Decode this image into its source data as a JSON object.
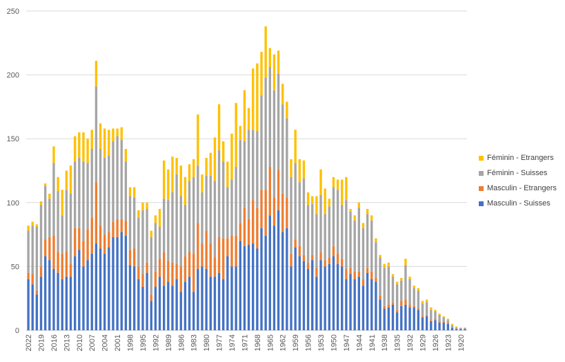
{
  "chart_data": {
    "type": "bar",
    "stacked": true,
    "title": "",
    "xlabel": "",
    "ylabel": "",
    "ylim": [
      0,
      250
    ],
    "yticks": [
      0,
      50,
      100,
      150,
      200,
      250
    ],
    "grid": true,
    "legend_position": "right",
    "x": [
      2022,
      2021,
      2020,
      2019,
      2018,
      2017,
      2016,
      2015,
      2014,
      2013,
      2012,
      2011,
      2010,
      2009,
      2008,
      2007,
      2006,
      2005,
      2004,
      2003,
      2002,
      2001,
      2000,
      1999,
      1998,
      1997,
      1996,
      1995,
      1994,
      1993,
      1992,
      1991,
      1990,
      1989,
      1988,
      1987,
      1986,
      1985,
      1984,
      1983,
      1982,
      1981,
      1980,
      1979,
      1978,
      1977,
      1976,
      1975,
      1974,
      1973,
      1972,
      1971,
      1970,
      1969,
      1968,
      1967,
      1966,
      1965,
      1964,
      1963,
      1962,
      1961,
      1960,
      1959,
      1958,
      1957,
      1956,
      1955,
      1954,
      1953,
      1952,
      1951,
      1950,
      1949,
      1948,
      1947,
      1946,
      1945,
      1944,
      1943,
      1942,
      1941,
      1940,
      1939,
      1938,
      1937,
      1936,
      1935,
      1934,
      1933,
      1932,
      1931,
      1930,
      1929,
      1928,
      1927,
      1926,
      1925,
      1924,
      1923,
      1922,
      1921,
      1920,
      1919
    ],
    "x_tick_labels": [
      "2022",
      "2019",
      "2016",
      "2013",
      "2010",
      "2007",
      "2004",
      "2001",
      "1998",
      "1995",
      "1992",
      "1989",
      "1986",
      "1983",
      "1980",
      "1977",
      "1974",
      "1971",
      "1968",
      "1965",
      "1962",
      "1959",
      "1956",
      "1953",
      "1950",
      "1947",
      "1944",
      "1941",
      "1938",
      "1935",
      "1932",
      "1929",
      "1926",
      "1923",
      "1920"
    ],
    "series": [
      {
        "name": "Masculin - Suisses",
        "color": "#4472C4",
        "values": [
          40,
          36,
          28,
          42,
          58,
          55,
          48,
          45,
          40,
          42,
          42,
          58,
          63,
          50,
          55,
          60,
          68,
          64,
          60,
          65,
          73,
          73,
          77,
          74,
          51,
          50,
          40,
          34,
          45,
          23,
          34,
          42,
          35,
          38,
          35,
          40,
          30,
          38,
          42,
          30,
          48,
          50,
          48,
          42,
          42,
          45,
          40,
          58,
          50,
          50,
          70,
          66,
          67,
          68,
          64,
          80,
          74,
          90,
          82,
          94,
          77,
          80,
          50,
          65,
          58,
          54,
          48,
          55,
          42,
          55,
          50,
          52,
          58,
          52,
          50,
          40,
          44,
          40,
          42,
          35,
          45,
          40,
          38,
          24,
          17,
          18,
          20,
          14,
          19,
          20,
          18,
          18,
          16,
          10,
          11,
          7,
          8,
          6,
          6,
          5,
          2,
          1,
          1,
          1
        ]
      },
      {
        "name": "Masculin - Etrangers",
        "color": "#ED7D31",
        "values": [
          5,
          8,
          3,
          8,
          13,
          18,
          26,
          16,
          20,
          20,
          10,
          22,
          17,
          20,
          24,
          28,
          48,
          18,
          15,
          12,
          12,
          14,
          10,
          12,
          12,
          14,
          10,
          10,
          8,
          5,
          12,
          14,
          26,
          16,
          18,
          12,
          20,
          20,
          20,
          30,
          36,
          18,
          30,
          26,
          15,
          28,
          32,
          14,
          24,
          24,
          14,
          30,
          20,
          34,
          32,
          30,
          36,
          38,
          22,
          32,
          30,
          24,
          10,
          6,
          8,
          5,
          5,
          4,
          7,
          6,
          5,
          5,
          8,
          8,
          6,
          8,
          5,
          6,
          4,
          5,
          4,
          6,
          3,
          3,
          2,
          2,
          2,
          2,
          4,
          4,
          2,
          1,
          1,
          1,
          1,
          1,
          1,
          1,
          1,
          1,
          0,
          0,
          0,
          0
        ]
      },
      {
        "name": "Féminin - Suisses",
        "color": "#A5A5A5",
        "values": [
          33,
          38,
          50,
          48,
          42,
          30,
          57,
          48,
          30,
          48,
          55,
          52,
          55,
          62,
          52,
          54,
          75,
          60,
          60,
          60,
          63,
          65,
          62,
          46,
          42,
          40,
          38,
          50,
          42,
          45,
          38,
          25,
          42,
          48,
          55,
          70,
          55,
          40,
          55,
          60,
          45,
          40,
          43,
          53,
          60,
          68,
          60,
          40,
          44,
          54,
          65,
          52,
          70,
          55,
          60,
          74,
          88,
          78,
          84,
          75,
          70,
          62,
          60,
          60,
          50,
          60,
          45,
          40,
          42,
          45,
          36,
          40,
          46,
          50,
          42,
          54,
          44,
          40,
          50,
          40,
          42,
          40,
          28,
          30,
          30,
          30,
          20,
          20,
          16,
          27,
          20,
          14,
          14,
          10,
          10,
          8,
          6,
          5,
          3,
          2,
          2,
          1,
          1,
          1
        ]
      },
      {
        "name": "Féminin - Etrangers",
        "color": "#FFC000",
        "values": [
          4,
          3,
          2,
          3,
          2,
          4,
          13,
          11,
          20,
          15,
          22,
          20,
          20,
          23,
          19,
          15,
          20,
          20,
          23,
          20,
          10,
          6,
          10,
          10,
          7,
          8,
          6,
          6,
          5,
          5,
          6,
          14,
          30,
          24,
          28,
          13,
          24,
          22,
          13,
          14,
          40,
          14,
          14,
          18,
          34,
          36,
          16,
          20,
          36,
          50,
          11,
          40,
          17,
          48,
          53,
          34,
          40,
          15,
          28,
          18,
          16,
          13,
          14,
          26,
          18,
          14,
          10,
          6,
          14,
          20,
          20,
          6,
          8,
          8,
          20,
          18,
          2,
          4,
          4,
          4,
          4,
          4,
          3,
          2,
          3,
          3,
          2,
          2,
          2,
          5,
          2,
          2,
          2,
          2,
          2,
          2,
          1,
          1,
          1,
          1,
          1,
          1,
          0,
          0
        ]
      }
    ]
  }
}
